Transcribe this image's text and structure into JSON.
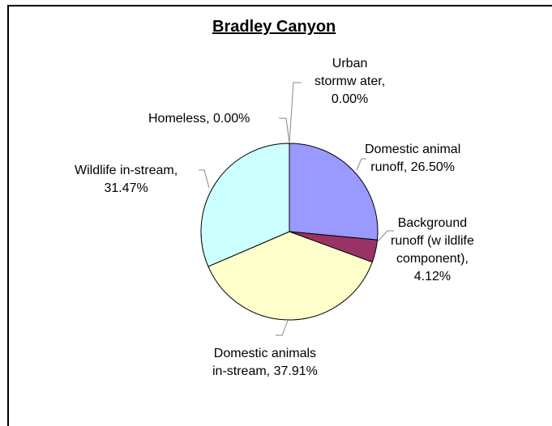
{
  "chart_data": {
    "type": "pie",
    "title": "Bradley Canyon",
    "slices": [
      {
        "name": "Urban stormwater",
        "value": 0.0,
        "color": "#a0a0ff",
        "label_lines": [
          "Urban",
          "stormw ater,",
          "0.00%"
        ]
      },
      {
        "name": "Domestic animal runoff",
        "value": 26.5,
        "color": "#9999ff",
        "label_lines": [
          "Domestic animal",
          "runoff, 26.50%"
        ]
      },
      {
        "name": "Background runoff (wildlife component)",
        "value": 4.12,
        "color": "#993366",
        "label_lines": [
          "Background",
          "runoff (w ildlife",
          "component),",
          "4.12%"
        ]
      },
      {
        "name": "Domestic animals in-stream",
        "value": 37.91,
        "color": "#ffffcc",
        "label_lines": [
          "Domestic animals",
          "in-stream, 37.91%"
        ]
      },
      {
        "name": "Wildlife in-stream",
        "value": 31.47,
        "color": "#ccffff",
        "label_lines": [
          "Wildlife in-stream,",
          "31.47%"
        ]
      },
      {
        "name": "Homeless",
        "value": 0.0,
        "color": "#660066",
        "label_lines": [
          "Homeless, 0.00%"
        ]
      }
    ]
  }
}
